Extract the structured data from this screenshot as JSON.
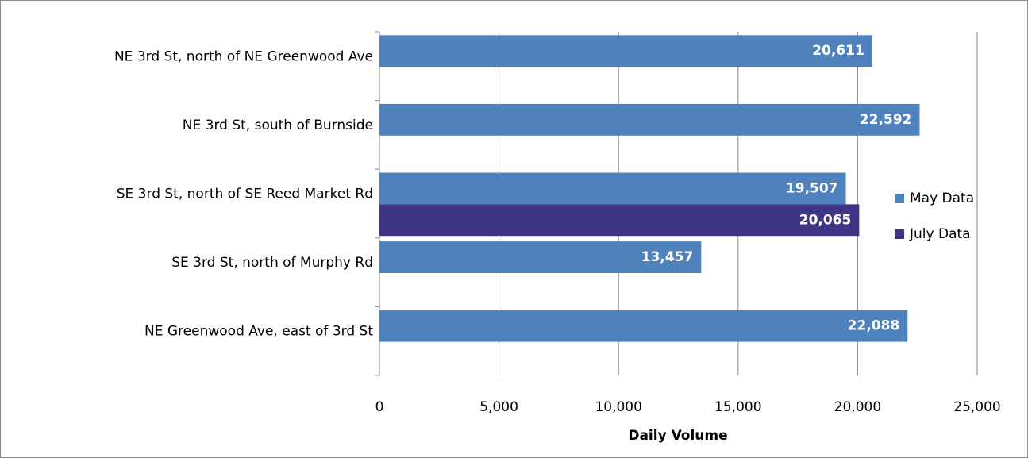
{
  "chart_data": {
    "type": "bar",
    "orientation": "horizontal",
    "x_label": "Daily Volume",
    "categories": [
      "NE 3rd St, north of NE Greenwood Ave",
      "NE 3rd St, south of Burnside",
      "SE 3rd St, north of SE Reed Market Rd",
      "SE 3rd St, north of Murphy Rd",
      "NE Greenwood Ave, east of 3rd St"
    ],
    "series": [
      {
        "name": "May Data",
        "color": "#4f81bd",
        "values": [
          20611,
          22592,
          19507,
          13457,
          22088
        ],
        "value_labels": [
          "20,611",
          "22,592",
          "19,507",
          "13,457",
          "22,088"
        ]
      },
      {
        "name": "July Data",
        "color": "#3f3585",
        "values": [
          null,
          null,
          20065,
          null,
          null
        ],
        "value_labels": [
          null,
          null,
          "20,065",
          null,
          null
        ]
      }
    ],
    "xlim": [
      0,
      25000
    ],
    "xticks": [
      0,
      {
        "value": 5000,
        "label": "5,000"
      },
      {
        "value": 10000,
        "label": "10,000"
      },
      {
        "value": 15000,
        "label": "15,000"
      },
      {
        "value": 20000,
        "label": "20,000"
      },
      {
        "value": 25000,
        "label": "25,000"
      }
    ],
    "grid": true,
    "legend": "right"
  }
}
